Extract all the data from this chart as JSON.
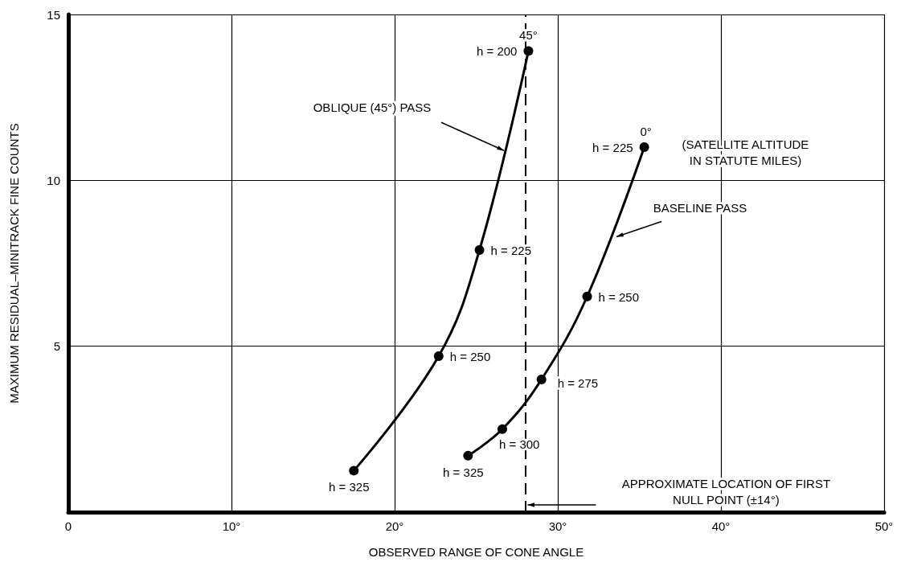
{
  "chart_data": {
    "type": "line",
    "xlabel": "OBSERVED RANGE OF CONE ANGLE",
    "ylabel": "MAXIMUM RESIDUAL–MINITRACK FINE COUNTS",
    "series": [
      {
        "color": "#000000",
        "x": [
          17.5,
          22.7,
          25.2,
          28.2
        ],
        "values": [
          1.25,
          4.7,
          7.9,
          13.9
        ]
      },
      {
        "color": "#000000",
        "x": [
          24.5,
          26.6,
          29.0,
          31.8,
          35.3
        ],
        "values": [
          1.7,
          2.5,
          4.0,
          6.5,
          11.0
        ]
      }
    ],
    "xlim": [
      0,
      50
    ],
    "xticks": [
      0,
      {
        "value": 10,
        "label": "10°"
      },
      {
        "value": 20,
        "label": "20°"
      },
      {
        "value": 30,
        "label": "30°"
      },
      {
        "value": 40,
        "label": "40°"
      },
      {
        "value": 50,
        "label": "50°"
      }
    ],
    "ylim": [
      0,
      15
    ],
    "yticks": [
      {
        "value": 0,
        "label": null
      },
      5,
      10,
      15
    ],
    "grid": true,
    "marker": "circle",
    "line_style": "solid",
    "ref_lines": [
      {
        "axis": "x",
        "value": 28,
        "label": "APPROXIMATE LOCATION OF FIRST\nNULL POINT (±14°)",
        "line_style": "dashed",
        "color": "#000000"
      }
    ],
    "annotations": [
      {
        "text": "45°",
        "x": 28.2,
        "y": 13.9
      },
      {
        "text": "h = 200",
        "x": 28.2,
        "y": 13.9
      },
      {
        "text": "h = 225",
        "x": 25.2,
        "y": 7.9
      },
      {
        "text": "h = 250",
        "x": 22.7,
        "y": 4.7
      },
      {
        "text": "h = 325",
        "x": 17.5,
        "y": 1.25
      },
      {
        "text": "0°",
        "x": 35.3,
        "y": 11.0
      },
      {
        "text": "h = 225",
        "x": 35.3,
        "y": 11.0
      },
      {
        "text": "h = 250",
        "x": 31.8,
        "y": 6.5
      },
      {
        "text": "h = 275",
        "x": 29.0,
        "y": 4.0
      },
      {
        "text": "h = 300",
        "x": 26.6,
        "y": 2.5
      },
      {
        "text": "h = 325",
        "x": 24.5,
        "y": 1.7
      },
      {
        "text": "OBLIQUE (45°) PASS",
        "x": 26.7,
        "y": 10.9
      },
      {
        "text": "BASELINE PASS",
        "x": 33.6,
        "y": 8.3
      },
      "(SATELLITE ALTITUDE\nIN STATUTE MILES)"
    ]
  }
}
